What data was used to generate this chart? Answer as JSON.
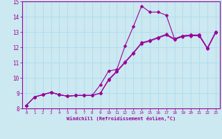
{
  "title": "",
  "xlabel": "Windchill (Refroidissement éolien,°C)",
  "ylabel": "",
  "xlim": [
    -0.5,
    23.5
  ],
  "ylim": [
    8,
    15
  ],
  "xticks": [
    0,
    1,
    2,
    3,
    4,
    5,
    6,
    7,
    8,
    9,
    10,
    11,
    12,
    13,
    14,
    15,
    16,
    17,
    18,
    19,
    20,
    21,
    22,
    23
  ],
  "yticks": [
    8,
    9,
    10,
    11,
    12,
    13,
    14,
    15
  ],
  "background_color": "#cce8f0",
  "line_color": "#990099",
  "grid_color": "#aaddee",
  "line1_x": [
    0,
    1,
    2,
    3,
    4,
    5,
    6,
    7,
    8,
    9,
    10,
    11,
    12,
    13,
    14,
    15,
    16,
    17,
    18,
    19,
    20,
    21,
    22,
    23
  ],
  "line1_y": [
    8.2,
    8.75,
    8.9,
    9.05,
    8.9,
    8.8,
    8.85,
    8.85,
    8.85,
    9.55,
    10.45,
    10.55,
    12.1,
    13.35,
    14.7,
    14.3,
    14.3,
    14.1,
    12.55,
    12.75,
    12.8,
    12.8,
    11.95,
    13.0
  ],
  "line2_x": [
    0,
    1,
    2,
    3,
    4,
    5,
    6,
    7,
    8,
    9,
    10,
    11,
    12,
    13,
    14,
    15,
    16,
    17,
    18,
    19,
    20,
    21,
    22,
    23
  ],
  "line2_y": [
    8.2,
    8.75,
    8.9,
    9.05,
    8.9,
    8.8,
    8.85,
    8.85,
    8.85,
    9.0,
    9.9,
    10.45,
    11.05,
    11.65,
    12.3,
    12.45,
    12.65,
    12.85,
    12.55,
    12.75,
    12.8,
    12.8,
    11.95,
    13.0
  ],
  "line3_x": [
    0,
    1,
    2,
    3,
    4,
    5,
    6,
    7,
    8,
    9,
    10,
    11,
    12,
    13,
    14,
    15,
    16,
    17,
    18,
    19,
    20,
    21,
    22,
    23
  ],
  "line3_y": [
    8.2,
    8.75,
    8.9,
    9.05,
    8.9,
    8.8,
    8.85,
    8.85,
    8.85,
    9.0,
    9.85,
    10.4,
    11.0,
    11.6,
    12.25,
    12.4,
    12.6,
    12.8,
    12.5,
    12.7,
    12.75,
    12.75,
    11.9,
    12.95
  ],
  "marker_size": 2.5,
  "linewidth": 0.8
}
